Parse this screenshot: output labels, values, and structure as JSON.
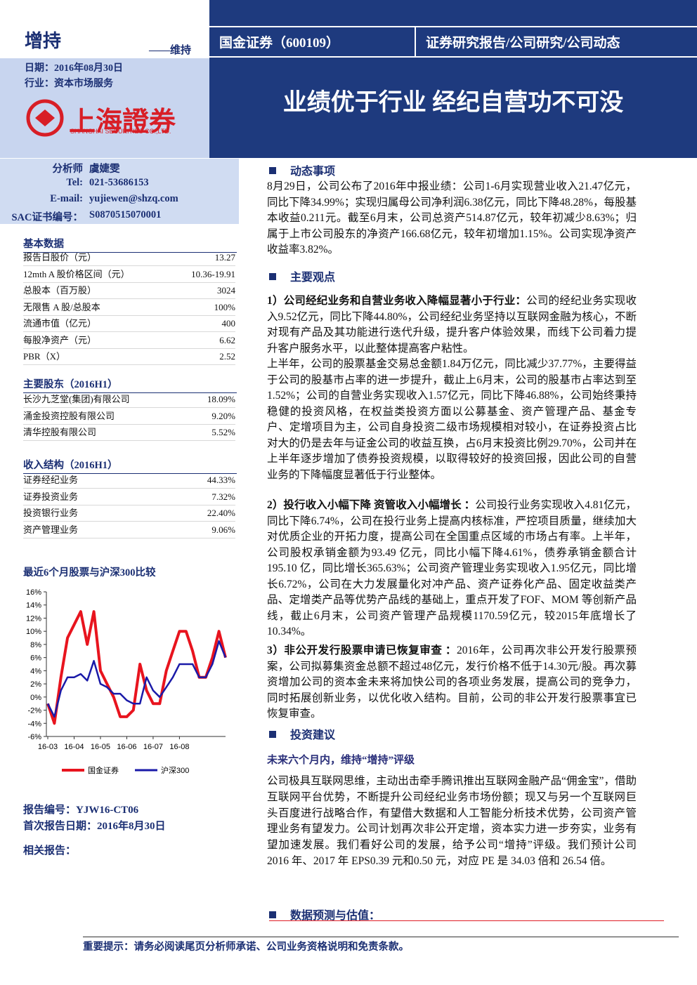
{
  "header": {
    "rating": "增持",
    "rating_note": "——维持",
    "date": "日期：2016年08月30日",
    "industry": "行业：资本市场服务",
    "logo_name": "上海證券",
    "logo_en": "SHANGHAI SECURITIES CO.,LTD.",
    "company": "国金证券（600109）",
    "report_type": "证券研究报告/公司研究/公司动态",
    "title": "业绩优于行业 经纪自营功不可没"
  },
  "analyst": [
    {
      "label": "分析师",
      "value": "虞婕雯"
    },
    {
      "label": "Tel:",
      "value": "021-53686153"
    },
    {
      "label": "E-mail:",
      "value": "yujiewen@shzq.com"
    },
    {
      "label": "SAC证书编号：",
      "value": "S0870515070001"
    }
  ],
  "basic_data": {
    "title": "基本数据",
    "rows": [
      [
        "报告日股价（元）",
        "13.27"
      ],
      [
        "12mth A 股价格区间（元）",
        "10.36-19.91"
      ],
      [
        "总股本（百万股）",
        "3024"
      ],
      [
        "无限售 A 股/总股本",
        "100%"
      ],
      [
        "流通市值（亿元）",
        "400"
      ],
      [
        "每股净资产（元）",
        "6.62"
      ],
      [
        "PBR（X）",
        "2.52"
      ]
    ]
  },
  "shareholders": {
    "title": "主要股东（2016H1）",
    "rows": [
      [
        "长沙九芝堂(集团)有限公司",
        "18.09%"
      ],
      [
        "涌金投资控股有限公司",
        "9.20%"
      ],
      [
        "清华控股有限公司",
        "5.52%"
      ]
    ]
  },
  "revenue": {
    "title": "收入结构（2016H1）",
    "rows": [
      [
        "证券经纪业务",
        "44.33%"
      ],
      [
        "证券投资业务",
        "7.32%"
      ],
      [
        "投资银行业务",
        "22.40%"
      ],
      [
        "资产管理业务",
        "9.06%"
      ]
    ]
  },
  "chart_data": {
    "type": "line",
    "title": "最近6个月股票与沪深300比较",
    "categories": [
      "16-03",
      null,
      null,
      null,
      "16-04",
      null,
      null,
      null,
      "16-05",
      null,
      null,
      null,
      "16-06",
      null,
      null,
      null,
      "16-07",
      null,
      null,
      null,
      "16-08",
      null,
      null,
      null,
      null,
      null,
      null,
      null
    ],
    "series": [
      {
        "name": "国金证券",
        "color": "#e8141e",
        "values": [
          -1,
          -4,
          3,
          9,
          11,
          13,
          8,
          13,
          4,
          2,
          0,
          -3,
          -3,
          -2,
          5,
          1,
          -1,
          -1,
          4,
          7,
          10,
          10,
          7,
          3,
          3,
          6,
          10,
          6
        ]
      },
      {
        "name": "沪深300",
        "color": "#1a1aa8",
        "values": [
          -1,
          -3,
          1,
          3,
          3,
          3.5,
          2.5,
          5.5,
          2,
          1.5,
          0.5,
          0.5,
          -0.5,
          -1,
          -1,
          3,
          1,
          0,
          1.5,
          3,
          5,
          5,
          5,
          3,
          3,
          5,
          8.5,
          6
        ]
      }
    ],
    "ylim": [
      -6,
      16
    ],
    "yticks": [
      {
        "value": -6,
        "label": "-6%"
      },
      {
        "value": -4,
        "label": "-4%"
      },
      {
        "value": -2,
        "label": "-2%"
      },
      {
        "value": 0,
        "label": "0%"
      },
      {
        "value": 2,
        "label": "2%"
      },
      {
        "value": 4,
        "label": "4%"
      },
      {
        "value": 6,
        "label": "6%"
      },
      {
        "value": 8,
        "label": "8%"
      },
      {
        "value": 10,
        "label": "10%"
      },
      {
        "value": 12,
        "label": "12%"
      },
      {
        "value": 14,
        "label": "14%"
      },
      {
        "value": 16,
        "label": "16%"
      }
    ],
    "grid": false,
    "legend": "bottom"
  },
  "report_info": {
    "number": "报告编号：YJW16-CT06",
    "first_date": "首次报告日期：2016年8月30日",
    "related": "相关报告："
  },
  "event": {
    "heading": "动态事项",
    "text": "8月29日，公司公布了2016年中报业绩：公司1-6月实现营业收入21.47亿元，同比下降34.99%；实现归属母公司净利润6.38亿元，同比下降48.28%，每股基本收益0.211元。截至6月末，公司总资产514.87亿元，较年初减少8.63%；归属于上市公司股东的净资产166.68亿元，较年初增加1.15%。公司实现净资产收益率3.82%。"
  },
  "views": {
    "heading": "主要观点",
    "points": [
      {
        "lead": "1）公司经纪业务和自营业务收入降幅显著小于行业：",
        "paragraphs": [
          "公司的经纪业务实现收入9.52亿元，同比下降44.80%，公司经纪业务坚持以互联网金融为核心，不断对现有产品及其功能进行迭代升级，提升客户体验效果，而线下公司着力提升客户服务水平，以此整体提高客户粘性。",
          "上半年，公司的股票基金交易总金额1.84万亿元，同比减少37.77%，主要得益于公司的股基市占率的进一步提升，截止上6月末，公司的股基市占率达到至1.52%；公司的自营业务实现收入1.57亿元，同比下降46.88%，公司始终秉持稳健的投资风格，在权益类投资方面以公募基金、资产管理产品、基金专户、定增项目为主，公司自身投资二级市场规模相对较小，在证券投资占比对大的仍是去年与证金公司的收益互换，占6月末投资比例29.70%，公司并在上半年逐步增加了债券投资规模，以取得较好的投资回报，因此公司的自营业务的下降幅度显著低于行业整体。"
        ]
      },
      {
        "lead": "2）投行收入小幅下降 资管收入小幅增长 ：",
        "paragraphs": [
          "公司投行业务实现收入4.81亿元，同比下降6.74%，公司在投行业务上提高内核标准，严控项目质量，继续加大对优质企业的开拓力度，提高公司在全国重点区域的市场占有率。上半年，公司股权承销金额为93.49 亿元，同比小幅下降4.61%，债券承销金额合计195.10 亿，同比增长365.63%；公司资产管理业务实现收入1.95亿元，同比增长6.72%，公司在大力发展量化对冲产品、资产证券化产品、固定收益类产品、定增类产品等优势产品线的基础上，重点开发了FOF、MOM 等创新产品线，截止6月末，公司资产管理产品规模1170.59亿元，较2015年底增长了10.34%。"
        ]
      },
      {
        "lead": "3）非公开发行股票申请已恢复审查 ：",
        "paragraphs": [
          "2016年，公司再次非公开发行股票预案，公司拟募集资金总额不超过48亿元，发行价格不低于14.30元/股。再次募资增加公司的资本金未来将加快公司的各项业务发展，提高公司的竞争力，同时拓展创新业务，以优化收入结构。目前，公司的非公开发行股票事宜已恢复审查。"
        ]
      }
    ]
  },
  "advice": {
    "heading": "投资建议",
    "subheading": "未来六个月内，维持“增持”评级",
    "text": "公司极具互联网思维，主动出击牵手腾讯推出互联网金融产品“佣金宝”，借助互联网平台优势，不断提升公司经纪业务市场份额；现又与另一个互联网巨头百度进行战略合作，有望借大数据和人工智能分析技术优势，公司资产管理业务有望发力。公司计划再次非公开定增，资本实力进一步夯实，业务有望加速发展。我们看好公司的发展，给予公司“增持”评级。我们预计公司 2016 年、2017 年 EPS0.39 元和0.50 元，对应 PE 是 34.03 倍和 26.54 倍。"
  },
  "forecast": {
    "heading": "数据预测与估值："
  },
  "footer": "重要提示：请务必阅读尾页分析师承诺、公司业务资格说明和免责条款。"
}
